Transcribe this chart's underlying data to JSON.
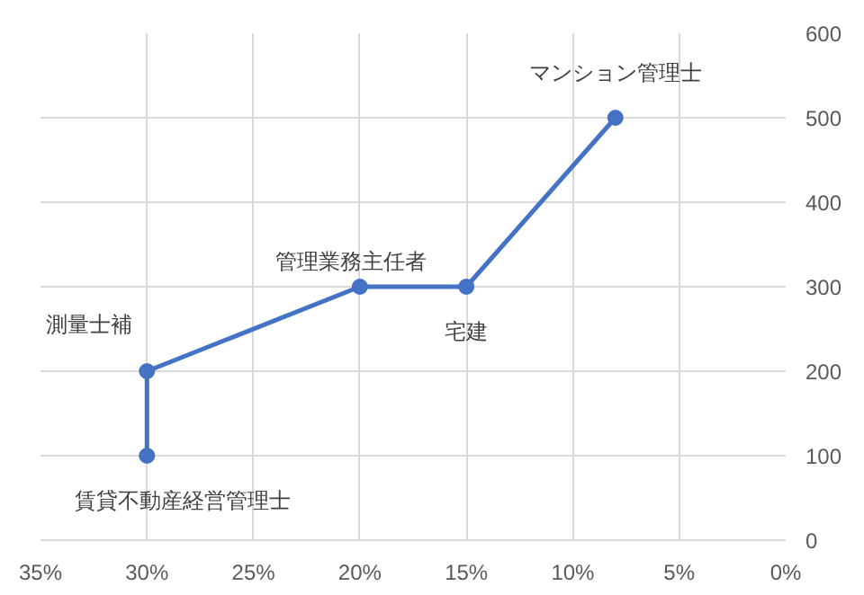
{
  "chart_data": {
    "type": "line",
    "marker": "circle",
    "line_style": "solid",
    "grid": true,
    "x": [
      30,
      30,
      20,
      15,
      8
    ],
    "series": [
      {
        "color": "#4472c4",
        "values": [
          100,
          200,
          300,
          300,
          500
        ]
      }
    ],
    "xlim": [
      35,
      0
    ],
    "xticks": [
      {
        "value": 35,
        "label": "35%"
      },
      {
        "value": 30,
        "label": "30%"
      },
      {
        "value": 25,
        "label": "25%"
      },
      {
        "value": 20,
        "label": "20%"
      },
      {
        "value": 15,
        "label": "15%"
      },
      {
        "value": 10,
        "label": "10%"
      },
      {
        "value": 5,
        "label": "5%"
      },
      {
        "value": 0,
        "label": "0%"
      }
    ],
    "ylim": [
      0,
      600
    ],
    "yticks": [
      0,
      100,
      200,
      300,
      400,
      500,
      600
    ],
    "annotations": [
      {
        "text": "賃貸不動産経営管理士",
        "x": 30,
        "y": 100
      },
      {
        "text": "測量士補",
        "x": 30,
        "y": 200
      },
      {
        "text": "管理業務主任者",
        "x": 20,
        "y": 300
      },
      {
        "text": "宅建",
        "x": 15,
        "y": 300
      },
      {
        "text": "マンション管理士",
        "x": 8,
        "y": 500
      }
    ]
  }
}
